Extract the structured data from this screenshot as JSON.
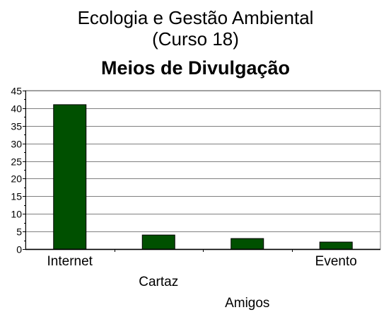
{
  "header": {
    "title_line1": "Ecologia e Gestão Ambiental",
    "title_line2": "(Curso 18)"
  },
  "chart_data": {
    "type": "bar",
    "title": "Meios de Divulgação",
    "categories": [
      "Internet",
      "Cartaz",
      "Amigos",
      "Evento"
    ],
    "values": [
      41,
      4,
      3,
      2
    ],
    "xlabel": "",
    "ylabel": "",
    "ylim": [
      0,
      45
    ],
    "yticks": [
      0,
      5,
      10,
      15,
      20,
      25,
      30,
      35,
      40,
      45
    ],
    "grid": true,
    "legend": "none",
    "colors": {
      "bar_fill": "#005000",
      "bar_stroke": "#000000",
      "grid": "#808080",
      "axis": "#000000"
    }
  }
}
